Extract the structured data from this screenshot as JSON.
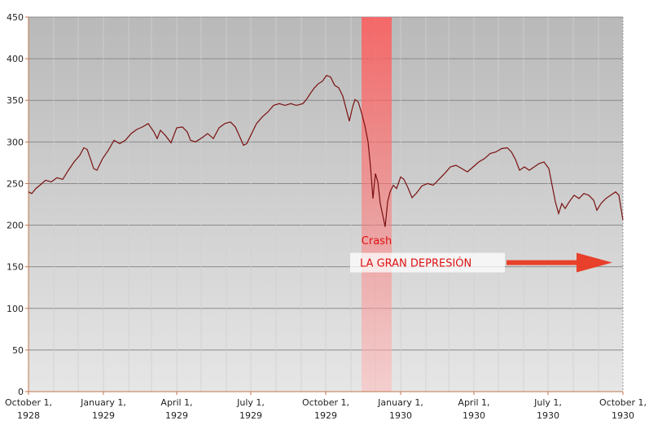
{
  "chart_data": {
    "type": "line",
    "title": "",
    "xlabel": "",
    "ylabel": "",
    "ylim": [
      0,
      450
    ],
    "yticks": [
      0,
      50,
      100,
      150,
      200,
      250,
      300,
      350,
      400,
      450
    ],
    "xlim": [
      "1928-10-01",
      "1930-10-01"
    ],
    "xticks": [
      {
        "date": "1928-10-01",
        "lines": [
          "October 1,",
          "1928"
        ]
      },
      {
        "date": "1929-01-01",
        "lines": [
          "January 1,",
          "1929"
        ]
      },
      {
        "date": "1929-04-01",
        "lines": [
          "April 1,",
          "1929"
        ]
      },
      {
        "date": "1929-07-01",
        "lines": [
          "July 1,",
          "1929"
        ]
      },
      {
        "date": "1929-10-01",
        "lines": [
          "October 1,",
          "1929"
        ]
      },
      {
        "date": "1930-01-01",
        "lines": [
          "January 1,",
          "1930"
        ]
      },
      {
        "date": "1930-04-01",
        "lines": [
          "April 1,",
          "1930"
        ]
      },
      {
        "date": "1930-07-01",
        "lines": [
          "July 1,",
          "1930"
        ]
      },
      {
        "date": "1930-10-01",
        "lines": [
          "October 1,",
          "1930"
        ]
      }
    ],
    "grid": true,
    "line_color": "#7a1010",
    "series": [
      {
        "name": "",
        "points": [
          [
            "1928-10-01",
            240
          ],
          [
            "1928-10-05",
            238
          ],
          [
            "1928-10-10",
            244
          ],
          [
            "1928-10-15",
            248
          ],
          [
            "1928-10-22",
            254
          ],
          [
            "1928-10-29",
            252
          ],
          [
            "1928-11-05",
            257
          ],
          [
            "1928-11-12",
            255
          ],
          [
            "1928-11-19",
            266
          ],
          [
            "1928-11-26",
            276
          ],
          [
            "1928-12-03",
            284
          ],
          [
            "1928-12-08",
            293
          ],
          [
            "1928-12-12",
            291
          ],
          [
            "1928-12-16",
            280
          ],
          [
            "1928-12-20",
            268
          ],
          [
            "1928-12-24",
            266
          ],
          [
            "1928-12-31",
            280
          ],
          [
            "1929-01-07",
            290
          ],
          [
            "1929-01-14",
            302
          ],
          [
            "1929-01-21",
            298
          ],
          [
            "1929-01-28",
            302
          ],
          [
            "1929-02-04",
            310
          ],
          [
            "1929-02-11",
            315
          ],
          [
            "1929-02-18",
            318
          ],
          [
            "1929-02-25",
            322
          ],
          [
            "1929-03-04",
            312
          ],
          [
            "1929-03-08",
            304
          ],
          [
            "1929-03-12",
            314
          ],
          [
            "1929-03-18",
            308
          ],
          [
            "1929-03-25",
            299
          ],
          [
            "1929-04-01",
            317
          ],
          [
            "1929-04-08",
            318
          ],
          [
            "1929-04-14",
            312
          ],
          [
            "1929-04-18",
            302
          ],
          [
            "1929-04-24",
            300
          ],
          [
            "1929-05-02",
            305
          ],
          [
            "1929-05-09",
            310
          ],
          [
            "1929-05-16",
            304
          ],
          [
            "1929-05-23",
            317
          ],
          [
            "1929-05-30",
            322
          ],
          [
            "1929-06-06",
            324
          ],
          [
            "1929-06-12",
            318
          ],
          [
            "1929-06-18",
            305
          ],
          [
            "1929-06-22",
            296
          ],
          [
            "1929-06-26",
            298
          ],
          [
            "1929-07-01",
            308
          ],
          [
            "1929-07-08",
            322
          ],
          [
            "1929-07-15",
            330
          ],
          [
            "1929-07-22",
            336
          ],
          [
            "1929-07-29",
            344
          ],
          [
            "1929-08-05",
            346
          ],
          [
            "1929-08-12",
            344
          ],
          [
            "1929-08-19",
            346
          ],
          [
            "1929-08-26",
            344
          ],
          [
            "1929-09-03",
            346
          ],
          [
            "1929-09-08",
            352
          ],
          [
            "1929-09-12",
            358
          ],
          [
            "1929-09-17",
            365
          ],
          [
            "1929-09-22",
            370
          ],
          [
            "1929-09-27",
            373
          ],
          [
            "1929-10-02",
            380
          ],
          [
            "1929-10-07",
            378
          ],
          [
            "1929-10-12",
            368
          ],
          [
            "1929-10-17",
            365
          ],
          [
            "1929-10-22",
            355
          ],
          [
            "1929-10-26",
            340
          ],
          [
            "1929-10-30",
            325
          ],
          [
            "1929-11-03",
            342
          ],
          [
            "1929-11-06",
            351
          ],
          [
            "1929-11-10",
            348
          ],
          [
            "1929-11-14",
            335
          ],
          [
            "1929-11-18",
            320
          ],
          [
            "1929-11-22",
            300
          ],
          [
            "1929-11-25",
            270
          ],
          [
            "1929-11-28",
            232
          ],
          [
            "1929-12-01",
            262
          ],
          [
            "1929-12-04",
            252
          ],
          [
            "1929-12-07",
            226
          ],
          [
            "1929-12-10",
            212
          ],
          [
            "1929-12-13",
            198
          ],
          [
            "1929-12-16",
            228
          ],
          [
            "1929-12-19",
            240
          ],
          [
            "1929-12-23",
            248
          ],
          [
            "1929-12-27",
            244
          ],
          [
            "1930-01-01",
            258
          ],
          [
            "1930-01-05",
            255
          ],
          [
            "1930-01-10",
            245
          ],
          [
            "1930-01-15",
            233
          ],
          [
            "1930-01-20",
            238
          ],
          [
            "1930-01-27",
            247
          ],
          [
            "1930-02-03",
            250
          ],
          [
            "1930-02-10",
            248
          ],
          [
            "1930-02-17",
            255
          ],
          [
            "1930-02-24",
            262
          ],
          [
            "1930-03-03",
            270
          ],
          [
            "1930-03-10",
            272
          ],
          [
            "1930-03-17",
            268
          ],
          [
            "1930-03-24",
            264
          ],
          [
            "1930-03-31",
            270
          ],
          [
            "1930-04-07",
            276
          ],
          [
            "1930-04-14",
            280
          ],
          [
            "1930-04-21",
            286
          ],
          [
            "1930-04-28",
            288
          ],
          [
            "1930-05-05",
            292
          ],
          [
            "1930-05-12",
            293
          ],
          [
            "1930-05-17",
            288
          ],
          [
            "1930-05-22",
            279
          ],
          [
            "1930-05-27",
            266
          ],
          [
            "1930-06-02",
            270
          ],
          [
            "1930-06-08",
            266
          ],
          [
            "1930-06-14",
            270
          ],
          [
            "1930-06-20",
            274
          ],
          [
            "1930-06-26",
            276
          ],
          [
            "1930-07-02",
            268
          ],
          [
            "1930-07-06",
            248
          ],
          [
            "1930-07-10",
            228
          ],
          [
            "1930-07-14",
            214
          ],
          [
            "1930-07-18",
            226
          ],
          [
            "1930-07-22",
            220
          ],
          [
            "1930-07-27",
            228
          ],
          [
            "1930-08-02",
            236
          ],
          [
            "1930-08-08",
            232
          ],
          [
            "1930-08-14",
            238
          ],
          [
            "1930-08-20",
            236
          ],
          [
            "1930-08-26",
            230
          ],
          [
            "1930-08-30",
            218
          ],
          [
            "1930-09-04",
            226
          ],
          [
            "1930-09-10",
            232
          ],
          [
            "1930-09-16",
            236
          ],
          [
            "1930-09-22",
            240
          ],
          [
            "1930-09-26",
            236
          ],
          [
            "1930-09-29",
            218
          ],
          [
            "1930-10-01",
            206
          ]
        ]
      }
    ],
    "annotations": {
      "crash_band": {
        "start": "1929-11-14",
        "end": "1929-12-21",
        "color": "#ff6666"
      },
      "crash_label": "Crash",
      "crash_label_value": 181,
      "depression_label": "LA GRAN DEPRESIÓN",
      "depression_value": 155,
      "label_color": "#dd1111",
      "arrow_color": "#e8402a"
    }
  }
}
